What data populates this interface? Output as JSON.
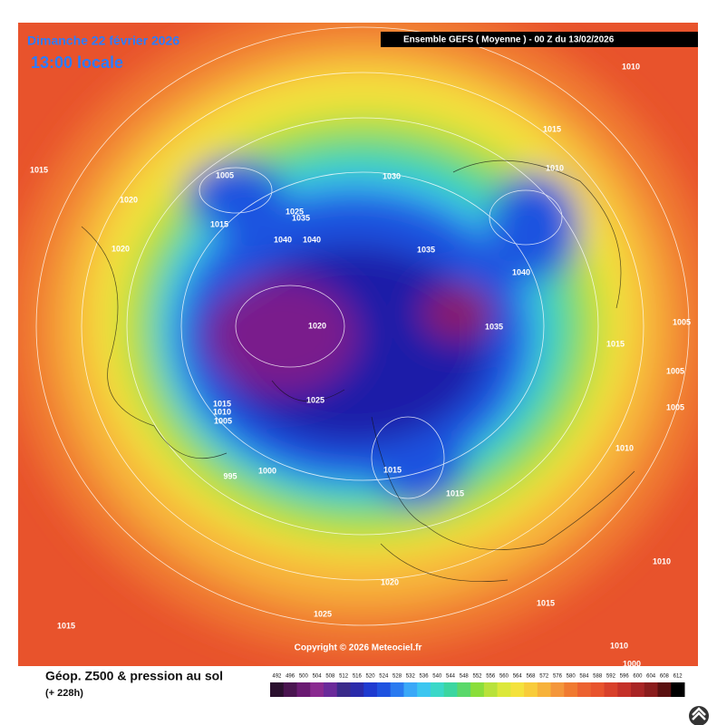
{
  "header": {
    "date": "Dimanche 22 février 2026",
    "time": "13:00 locale",
    "model": "Ensemble GEFS  ( Moyenne )  -  00 Z du 13/02/2026"
  },
  "isobar_labels": [
    "1010",
    "1015",
    "1005",
    "1030",
    "1015",
    "1010",
    "1020",
    "1025",
    "1035",
    "1015",
    "1020",
    "1040",
    "1040",
    "1035",
    "1040",
    "1020",
    "1035",
    "1015",
    "1025",
    "1015",
    "1010",
    "1005",
    "995",
    "1000",
    "1015",
    "1015",
    "1010",
    "1020",
    "1015",
    "1025",
    "1015",
    "1010",
    "1000",
    "1005",
    "1005",
    "1005",
    "1010"
  ],
  "copyright": "Copyright © 2026 Meteociel.fr",
  "footer": {
    "title": "Géop. Z500 & pression au sol",
    "lead": "(+ 228h)"
  },
  "scale_labels": [
    "492",
    "496",
    "500",
    "504",
    "508",
    "512",
    "516",
    "520",
    "524",
    "528",
    "532",
    "536",
    "540",
    "544",
    "548",
    "552",
    "556",
    "560",
    "564",
    "568",
    "572",
    "576",
    "580",
    "584",
    "588",
    "592",
    "596",
    "600",
    "604",
    "608",
    "612"
  ]
}
